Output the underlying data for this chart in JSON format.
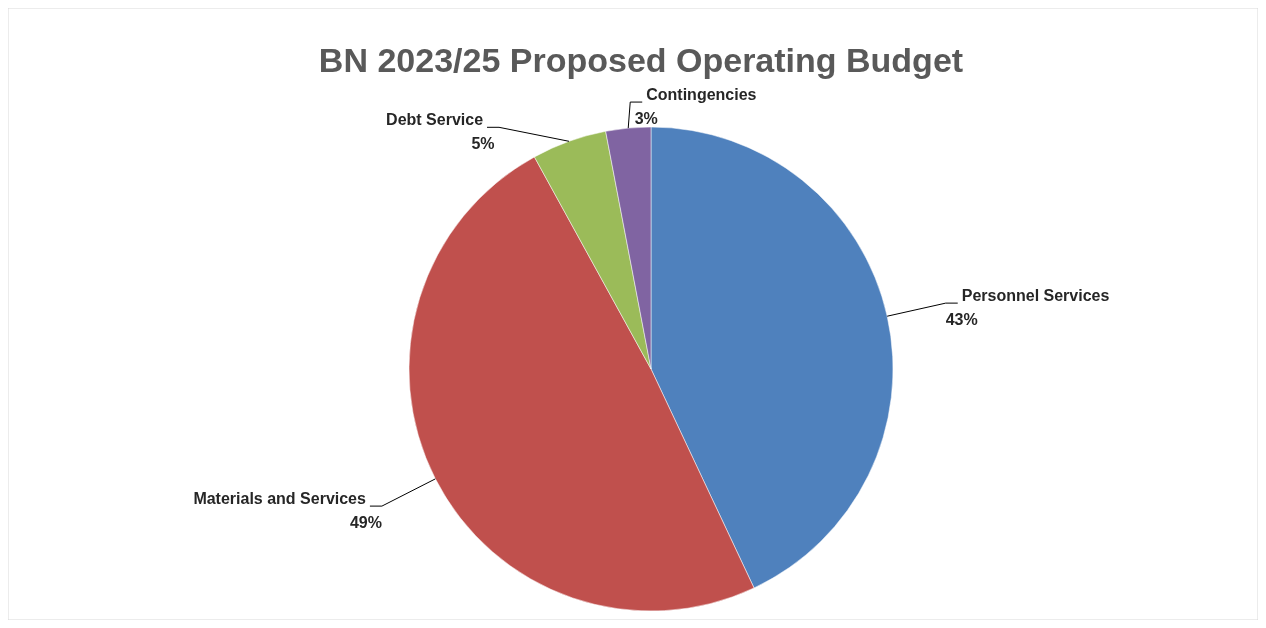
{
  "chart_data": {
    "type": "pie",
    "title": "BN 2023/25 Proposed Operating Budget",
    "categories": [
      "Personnel Services",
      "Materials and Services",
      "Debt Service",
      "Contingencies"
    ],
    "values": [
      43,
      49,
      5,
      3
    ],
    "value_labels": [
      "43%",
      "49%",
      "5%",
      "3%"
    ],
    "colors": [
      "#4f81bd",
      "#c0504d",
      "#9bbb59",
      "#8064a2"
    ]
  }
}
